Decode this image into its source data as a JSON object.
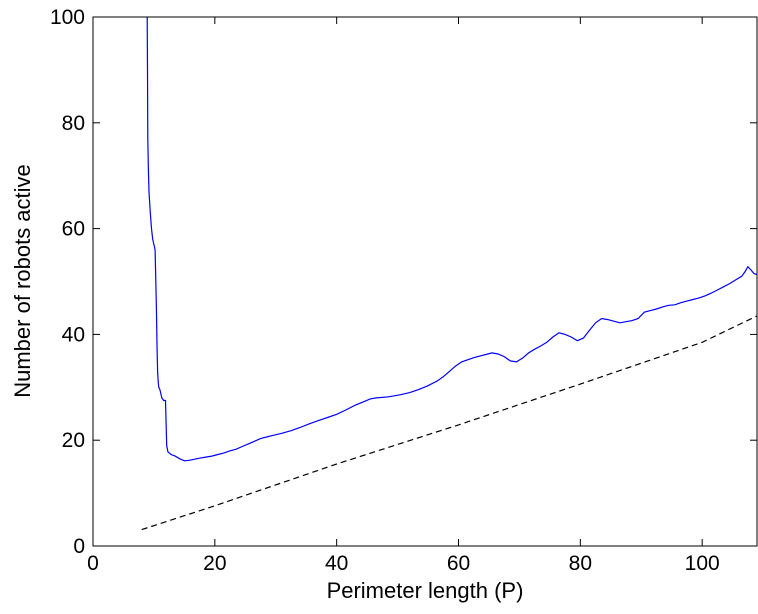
{
  "chart_data": {
    "type": "line",
    "title": "",
    "xlabel": "Perimeter length (P)",
    "ylabel": "Number of robots active",
    "xlim": [
      0,
      109
    ],
    "ylim": [
      0,
      100
    ],
    "xticks": [
      0,
      20,
      40,
      60,
      80,
      100
    ],
    "yticks": [
      0,
      20,
      40,
      60,
      80,
      100
    ],
    "grid": false,
    "legend": "none",
    "series": [
      {
        "style": "solid",
        "color": "#0000ff",
        "x": [
          8.9,
          8.95,
          9.0,
          9.1,
          9.2,
          9.4,
          9.6,
          9.8,
          10.0,
          10.2,
          10.4,
          10.5,
          10.6,
          10.7,
          10.8,
          11.0,
          11.3,
          11.6,
          11.9,
          12.1,
          12.3,
          12.8,
          13.5,
          14.2,
          15.0,
          15.8,
          16.7,
          17.5,
          18.5,
          19.5,
          20.5,
          21.5,
          22.5,
          23.5,
          24.5,
          25.5,
          26.5,
          27.5,
          28.5,
          29.5,
          31.0,
          32.5,
          34.0,
          35.5,
          37.0,
          38.5,
          40.0,
          41.5,
          43.0,
          44.5,
          45.5,
          46.5,
          47.5,
          48.5,
          49.5,
          50.5,
          52.0,
          53.5,
          55.0,
          56.5,
          57.5,
          58.5,
          59.5,
          60.5,
          61.5,
          62.5,
          63.5,
          64.5,
          65.5,
          66.5,
          67.5,
          68.5,
          69.5,
          70.5,
          71.5,
          72.5,
          73.5,
          74.5,
          75.5,
          76.5,
          77.5,
          78.5,
          79.5,
          80.5,
          81.5,
          82.5,
          83.5,
          84.5,
          85.5,
          86.5,
          87.5,
          88.5,
          89.5,
          90.5,
          91.5,
          92.5,
          93.5,
          94.5,
          95.5,
          96.5,
          97.5,
          98.5,
          99.5,
          100.5,
          101.5,
          102.5,
          103.5,
          104.5,
          105.5,
          106.5,
          107.0,
          107.5,
          108.0,
          108.5,
          109.0
        ],
        "y": [
          100,
          90,
          77,
          71,
          67,
          63,
          60,
          58,
          57,
          56,
          45,
          38,
          33,
          31,
          30,
          29.5,
          28,
          27.5,
          27.5,
          19,
          17.8,
          17.3,
          17.0,
          16.5,
          16.1,
          16.2,
          16.4,
          16.6,
          16.8,
          17.0,
          17.3,
          17.6,
          18.0,
          18.3,
          18.8,
          19.3,
          19.8,
          20.3,
          20.6,
          20.9,
          21.3,
          21.8,
          22.4,
          23.1,
          23.7,
          24.3,
          24.9,
          25.7,
          26.6,
          27.3,
          27.8,
          28.0,
          28.1,
          28.2,
          28.4,
          28.6,
          29.0,
          29.6,
          30.3,
          31.2,
          32.0,
          33.0,
          34.0,
          34.8,
          35.2,
          35.6,
          35.9,
          36.2,
          36.5,
          36.3,
          35.8,
          35.0,
          34.8,
          35.5,
          36.5,
          37.2,
          37.8,
          38.5,
          39.5,
          40.3,
          40.0,
          39.5,
          38.8,
          39.3,
          40.8,
          42.2,
          43.0,
          42.8,
          42.5,
          42.2,
          42.4,
          42.6,
          43.0,
          44.2,
          44.5,
          44.8,
          45.2,
          45.5,
          45.6,
          46.0,
          46.3,
          46.6,
          46.9,
          47.3,
          47.8,
          48.4,
          49.0,
          49.6,
          50.3,
          51.0,
          51.8,
          52.8,
          52.2,
          51.5,
          51.3
        ]
      },
      {
        "style": "dashed",
        "color": "#000000",
        "x": [
          8,
          20,
          40,
          60,
          80,
          100,
          109
        ],
        "y": [
          3.1,
          7.6,
          15.5,
          22.9,
          30.6,
          38.5,
          43.5
        ]
      }
    ]
  }
}
